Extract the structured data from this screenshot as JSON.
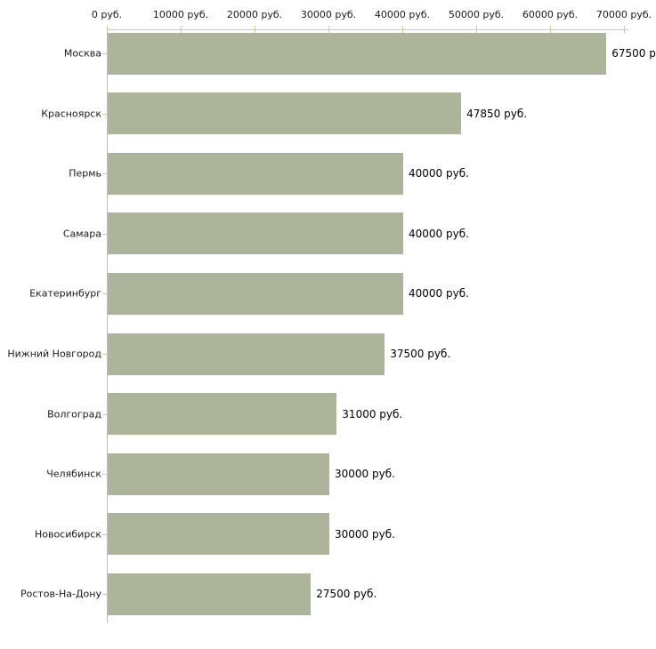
{
  "chart_data": {
    "type": "bar",
    "orientation": "horizontal",
    "categories": [
      "Москва",
      "Красноярск",
      "Пермь",
      "Самара",
      "Екатеринбург",
      "Нижний Новгород",
      "Волгоград",
      "Челябинск",
      "Новосибирск",
      "Ростов-На-Дону"
    ],
    "values": [
      67500,
      47850,
      40000,
      40000,
      40000,
      37500,
      31000,
      30000,
      30000,
      27500
    ],
    "value_labels": [
      "67500 р",
      "47850 руб.",
      "40000 руб.",
      "40000 руб.",
      "40000 руб.",
      "37500 руб.",
      "31000 руб.",
      "30000 руб.",
      "30000 руб.",
      "27500 руб."
    ],
    "x_ticks": [
      {
        "value": 0,
        "label": "0 руб."
      },
      {
        "value": 10000,
        "label": "10000 руб."
      },
      {
        "value": 20000,
        "label": "20000 руб."
      },
      {
        "value": 30000,
        "label": "30000 руб."
      },
      {
        "value": 40000,
        "label": "40000 руб."
      },
      {
        "value": 50000,
        "label": "50000 руб."
      },
      {
        "value": 60000,
        "label": "60000 руб."
      },
      {
        "value": 70000,
        "label": "70000 руб."
      }
    ],
    "xlim": [
      0,
      70000
    ],
    "unit": "руб.",
    "title": "",
    "xlabel": "",
    "ylabel": "",
    "grid": false,
    "legend": false,
    "colors": {
      "bar": "#acb59a",
      "axis_line": "#c6c6c6",
      "tick": "#cccc99",
      "text": "#1a1a1a",
      "background": "#ffffff"
    }
  }
}
